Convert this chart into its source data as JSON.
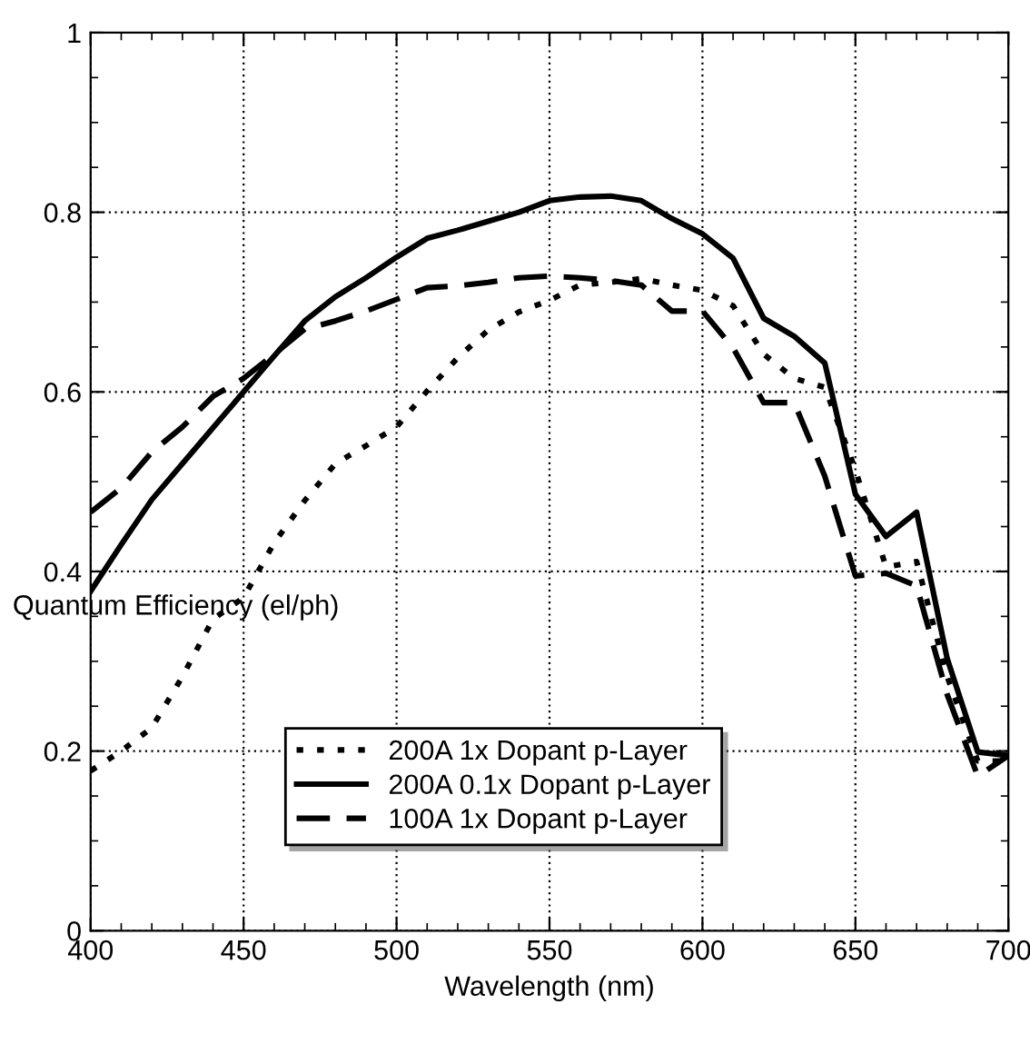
{
  "chart_data": {
    "type": "line",
    "xlabel": "Wavelength (nm)",
    "ylabel": "Quantum Efficiency (el/ph)",
    "x": [
      400,
      410,
      420,
      430,
      440,
      450,
      460,
      470,
      480,
      490,
      500,
      510,
      520,
      530,
      540,
      550,
      560,
      570,
      580,
      590,
      600,
      610,
      620,
      630,
      640,
      650,
      660,
      670,
      680,
      690,
      700
    ],
    "series": [
      {
        "name": "200A 1x Dopant p-Layer",
        "color": "#000000",
        "line_style": "dotted",
        "values": [
          0.178,
          0.2,
          0.226,
          0.283,
          0.347,
          0.371,
          0.432,
          0.479,
          0.52,
          0.54,
          0.561,
          0.601,
          0.638,
          0.669,
          0.689,
          0.702,
          0.719,
          0.722,
          0.726,
          0.719,
          0.713,
          0.696,
          0.642,
          0.615,
          0.605,
          0.513,
          0.405,
          0.411,
          0.283,
          0.189,
          0.189
        ]
      },
      {
        "name": "200A 0.1x Dopant p-Layer",
        "color": "#000000",
        "line_style": "solid",
        "values": [
          0.378,
          0.43,
          0.48,
          0.52,
          0.56,
          0.6,
          0.64,
          0.679,
          0.706,
          0.727,
          0.75,
          0.771,
          0.78,
          0.79,
          0.8,
          0.813,
          0.817,
          0.818,
          0.813,
          0.793,
          0.776,
          0.749,
          0.682,
          0.662,
          0.632,
          0.486,
          0.439,
          0.466,
          0.303,
          0.199,
          0.195
        ]
      },
      {
        "name": "100A 1x Dopant p-Layer",
        "color": "#000000",
        "line_style": "dashed",
        "values": [
          0.466,
          0.493,
          0.533,
          0.561,
          0.595,
          0.615,
          0.642,
          0.67,
          0.679,
          0.69,
          0.703,
          0.716,
          0.718,
          0.722,
          0.727,
          0.729,
          0.727,
          0.724,
          0.719,
          0.69,
          0.69,
          0.649,
          0.588,
          0.588,
          0.506,
          0.395,
          0.398,
          0.384,
          0.263,
          0.172,
          0.195
        ]
      }
    ],
    "xlim": [
      400,
      700
    ],
    "ylim": [
      0,
      1
    ],
    "xticks": [
      400,
      450,
      500,
      550,
      600,
      650,
      700
    ],
    "yticks": [
      0,
      0.2,
      0.4,
      0.6,
      0.8,
      1
    ],
    "grid": true,
    "legend": "bottom",
    "marker": "none"
  }
}
